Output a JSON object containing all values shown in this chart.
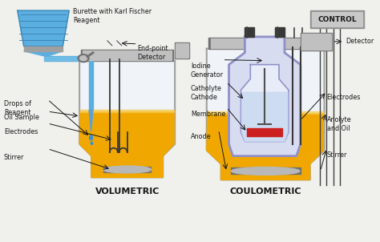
{
  "bg_color": "#f0f0ec",
  "title_vol": "VOLUMETRIC",
  "title_coul": "COULOMETRIC",
  "colors": {
    "burette_blue": "#5aaee0",
    "burette_dark": "#3a80b0",
    "liquid_yellow": "#f0a800",
    "liquid_light": "#f8c840",
    "vessel_gray": "#a0a0a0",
    "vessel_dark": "#707070",
    "vessel_mid": "#c0c0c0",
    "glass_white": "#f0f4f8",
    "inner_blue": "#9090c8",
    "inner_fill": "#d8dcf0",
    "red_membrane": "#cc2020",
    "control_gray": "#909090",
    "control_light": "#c8c8c8",
    "drop_blue": "#4090d0",
    "text_dark": "#181818",
    "silver": "#b8b8b8",
    "white": "#f8f8f8",
    "electrode_dark": "#383838",
    "tube_gray": "#888888",
    "needle_blue": "#60a0d0"
  },
  "labels_vol": {
    "burette": "Burette with Karl Fischer\nReagent",
    "endpoint": "End-point\nDetector",
    "drops": "Drops of\nReagent",
    "oil": "Oil Sample",
    "electrodes": "Electrodes",
    "stirrer": "Stirrer"
  },
  "labels_coul": {
    "control": "CONTROL",
    "detector": "Detector",
    "iodine": "Iodine\nGenerator",
    "catholyte": "Catholyte\nCathode",
    "membrane": "Membrane",
    "anode": "Anode",
    "electrodes": "Electrodes",
    "anolyte": "Anolyte\nand Oil",
    "stirrer": "Stirrer"
  }
}
